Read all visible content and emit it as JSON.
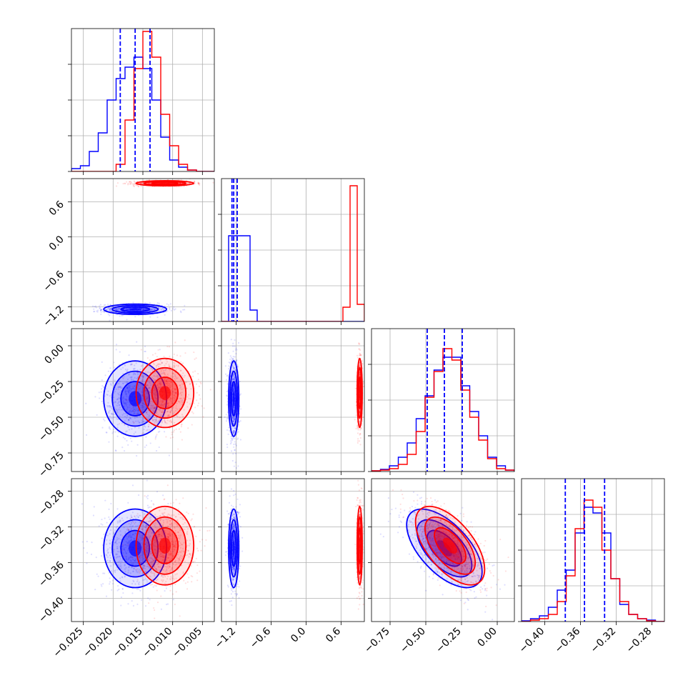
{
  "colors": {
    "series_a": "#0000ff",
    "series_b": "#ff0000",
    "grid": "#b0b0b0"
  },
  "chart_data": {
    "type": "corner",
    "title": "",
    "grid": true,
    "variables": [
      {
        "index": 0,
        "range": [
          -0.027,
          -0.003
        ],
        "ticks": [
          -0.025,
          -0.02,
          -0.015,
          -0.01,
          -0.005
        ],
        "tick_labels": [
          "−0.025",
          "−0.020",
          "−0.015",
          "−0.010",
          "−0.005"
        ]
      },
      {
        "index": 1,
        "range": [
          -1.45,
          1.0
        ],
        "ticks": [
          -1.2,
          -0.6,
          0.0,
          0.6
        ],
        "tick_labels": [
          "−1.2",
          "−0.6",
          "0.0",
          "0.6"
        ]
      },
      {
        "index": 2,
        "range": [
          -0.88,
          0.12
        ],
        "ticks": [
          -0.75,
          -0.5,
          -0.25,
          0.0
        ],
        "tick_labels": [
          "−0.75",
          "−0.50",
          "−0.25",
          "0.00"
        ]
      },
      {
        "index": 3,
        "range": [
          -0.426,
          -0.266
        ],
        "ticks": [
          -0.4,
          -0.36,
          -0.32,
          -0.28
        ],
        "tick_labels": [
          "−0.40",
          "−0.36",
          "−0.32",
          "−0.28"
        ]
      }
    ],
    "series": [
      {
        "color": "blue",
        "means": [
          -0.0163,
          -1.24,
          -0.37,
          -0.344
        ],
        "stds": [
          0.0024,
          0.04,
          0.12,
          0.02
        ],
        "quantiles": [
          [
            -0.0188,
            -0.0163,
            -0.0138
          ],
          [
            -1.27,
            -1.24,
            -1.18
          ],
          [
            -0.49,
            -0.37,
            -0.245
          ],
          [
            -0.377,
            -0.3555,
            -0.333
          ]
        ],
        "correlations": {
          "2-3": -0.6
        },
        "histograms": [
          [
            0.02,
            0.04,
            0.14,
            0.27,
            0.5,
            0.65,
            0.73,
            0.8,
            0.72,
            0.5,
            0.24,
            0.08,
            0.03,
            0.01,
            0.0,
            0.0
          ],
          [
            0.0,
            0.6,
            0.6,
            0.6,
            0.08,
            0.0,
            0.0,
            0.0,
            0.0,
            0.0,
            0.0,
            0.0,
            0.0,
            0.0,
            0.0,
            0.0,
            0.0,
            0.0,
            0.0,
            0.0
          ],
          [
            0.005,
            0.015,
            0.04,
            0.1,
            0.2,
            0.37,
            0.53,
            0.71,
            0.8,
            0.8,
            0.6,
            0.42,
            0.25,
            0.1,
            0.04,
            0.01
          ],
          [
            0.005,
            0.02,
            0.04,
            0.1,
            0.22,
            0.36,
            0.62,
            0.8,
            0.76,
            0.62,
            0.3,
            0.12,
            0.05,
            0.02,
            0.01,
            0.0
          ]
        ]
      },
      {
        "color": "red",
        "means": [
          -0.0113,
          0.92,
          -0.33,
          -0.341
        ],
        "stds": [
          0.0022,
          0.02,
          0.11,
          0.02
        ],
        "quantiles": [],
        "correlations": {
          "2-3": -0.6
        },
        "histograms": [
          [
            0.0,
            0.0,
            0.0,
            0.0,
            0.0,
            0.05,
            0.36,
            0.72,
            0.98,
            0.8,
            0.4,
            0.18,
            0.05,
            0.01,
            0.0,
            0.0
          ],
          [
            0.0,
            0.0,
            0.0,
            0.0,
            0.0,
            0.0,
            0.0,
            0.0,
            0.0,
            0.0,
            0.0,
            0.0,
            0.0,
            0.0,
            0.0,
            0.0,
            0.0,
            0.1,
            0.95,
            0.12
          ],
          [
            0.005,
            0.01,
            0.02,
            0.05,
            0.12,
            0.28,
            0.52,
            0.7,
            0.86,
            0.78,
            0.57,
            0.38,
            0.22,
            0.09,
            0.02,
            0.01
          ],
          [
            0.0,
            0.01,
            0.02,
            0.05,
            0.14,
            0.32,
            0.65,
            0.85,
            0.8,
            0.5,
            0.3,
            0.14,
            0.05,
            0.02,
            0.005,
            0.0
          ]
        ]
      }
    ]
  }
}
